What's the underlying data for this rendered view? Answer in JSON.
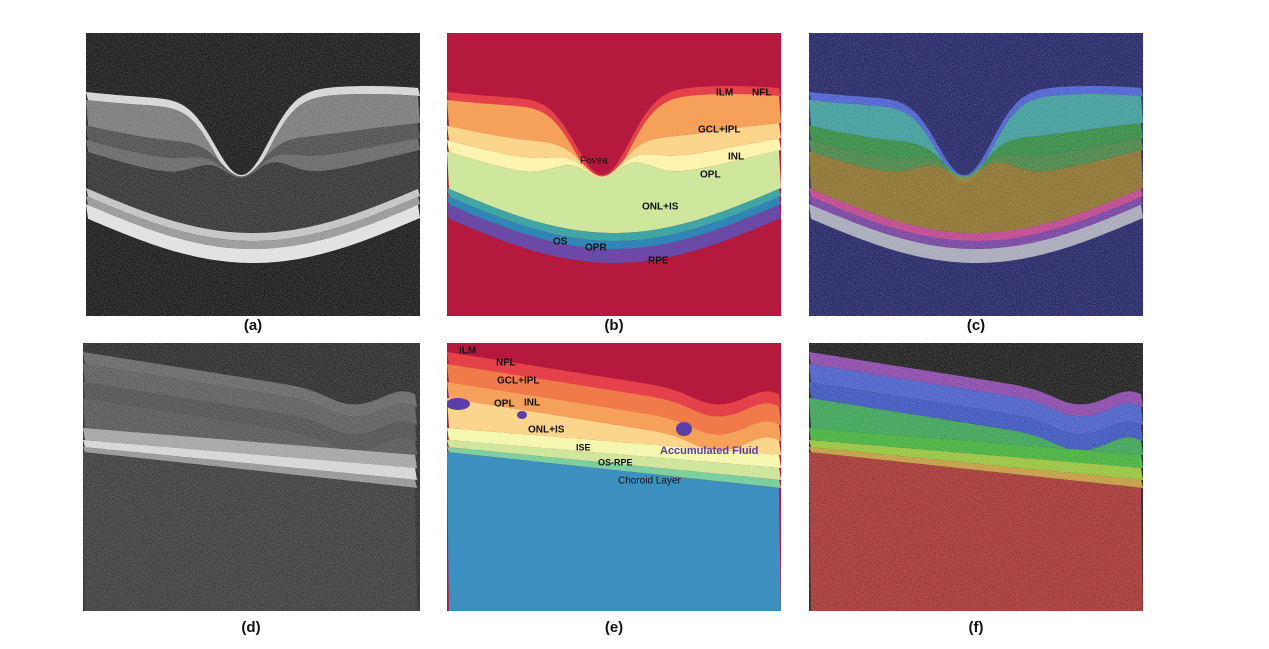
{
  "panels": [
    {
      "label": "(a)"
    },
    {
      "label": "(b)",
      "annotations": [
        "ILM",
        "NFL",
        "GCL+IPL",
        "INL",
        "OPL",
        "Fovea",
        "ONL+IS",
        "OS",
        "OPR",
        "RPE"
      ]
    },
    {
      "label": "(c)"
    },
    {
      "label": "(d)"
    },
    {
      "label": "(e)",
      "annotations": [
        "ILM",
        "NFL",
        "GCL+IPL",
        "OPL",
        "INL",
        "ONL+IS",
        "ISE",
        "OS-RPE",
        "Choroid Layer",
        "Accumulated Fluid"
      ]
    },
    {
      "label": "(f)"
    }
  ]
}
